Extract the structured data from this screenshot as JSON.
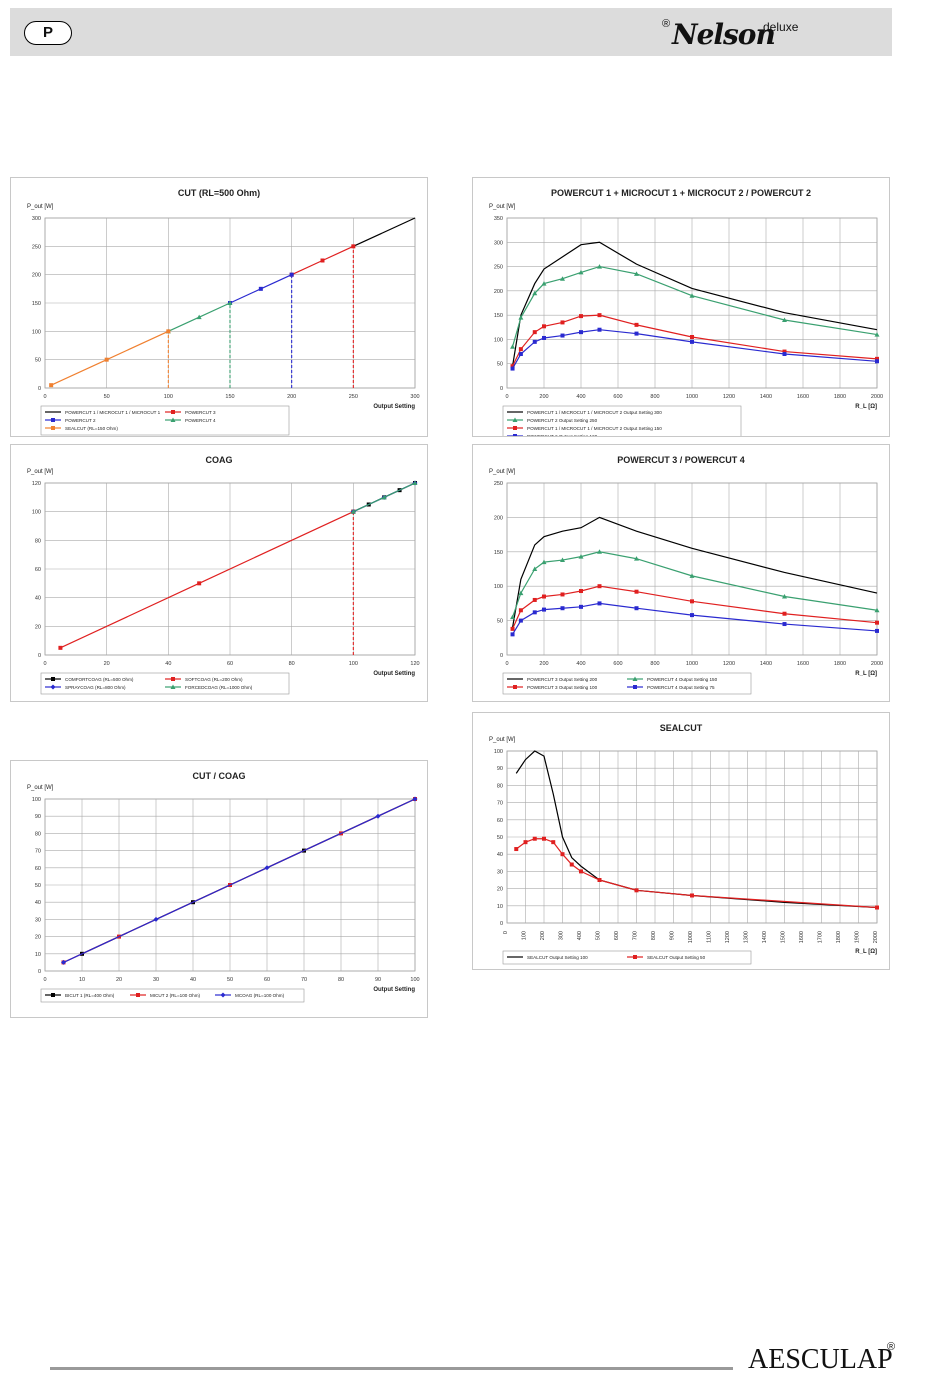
{
  "header": {
    "lang_badge": "P",
    "brand_reg": "®",
    "brand_name": "Nelson",
    "brand_suffix": "deluxe"
  },
  "footer": {
    "brand": "AESCULAP",
    "reg": "®"
  },
  "charts": [
    {
      "id": "cut",
      "title": "CUT (RL=500 Ohm)",
      "ylabel": "P_out [W]",
      "xlabel": "Output Setting",
      "chart_data": {
        "type": "line",
        "xlim": [
          0,
          300
        ],
        "ylim": [
          0,
          300
        ],
        "xticks": [
          0,
          50,
          100,
          150,
          200,
          250,
          300
        ],
        "yticks": [
          0,
          50,
          100,
          150,
          200,
          250,
          300
        ],
        "series": [
          {
            "name": "POWERCUT 1 / MICROCUT 1 / MICROCUT 1",
            "color": "#000000",
            "marker": "none",
            "x": [
              250,
              300
            ],
            "y": [
              250,
              300
            ]
          },
          {
            "name": "POWERCUT 3",
            "color": "#e02020",
            "marker": "square",
            "x": [
              200,
              225,
              250
            ],
            "y": [
              200,
              225,
              250
            ]
          },
          {
            "name": "POWERCUT 2",
            "color": "#2a2ad0",
            "marker": "square",
            "x": [
              150,
              175,
              200
            ],
            "y": [
              150,
              175,
              200
            ]
          },
          {
            "name": "POWERCUT 4",
            "color": "#3aa070",
            "marker": "triangle",
            "x": [
              100,
              125,
              150
            ],
            "y": [
              100,
              125,
              150
            ]
          },
          {
            "name": "SEALCUT (RL=150 Ohm)",
            "color": "#f08030",
            "marker": "square",
            "x": [
              5,
              50,
              100
            ],
            "y": [
              5,
              50,
              100
            ]
          }
        ],
        "vlines": [
          {
            "x": 100,
            "color": "#f08030"
          },
          {
            "x": 150,
            "color": "#3aa070"
          },
          {
            "x": 200,
            "color": "#2a2ad0"
          },
          {
            "x": 250,
            "color": "#e02020"
          }
        ]
      }
    },
    {
      "id": "powercut12",
      "title": "POWERCUT 1 + MICROCUT 1 + MICROCUT 2 / POWERCUT 2",
      "ylabel": "P_out [W]",
      "xlabel": "R_L [Ω]",
      "chart_data": {
        "type": "line",
        "xlim": [
          0,
          2000
        ],
        "ylim": [
          0,
          350
        ],
        "xticks": [
          0,
          200,
          400,
          600,
          800,
          1000,
          1200,
          1400,
          1600,
          1800,
          2000
        ],
        "yticks": [
          0,
          50,
          100,
          150,
          200,
          250,
          300,
          350
        ],
        "series": [
          {
            "name": "POWERCUT 1 / MICROCUT 1 / MICROCUT 2 Output Setting 300",
            "color": "#000000",
            "marker": "none",
            "x": [
              30,
              75,
              150,
              200,
              300,
              400,
              500,
              700,
              1000,
              1500,
              2000
            ],
            "y": [
              45,
              150,
              215,
              245,
              270,
              295,
              300,
              255,
              205,
              155,
              120
            ]
          },
          {
            "name": "POWERCUT 2 Output Setting 250",
            "color": "#3aa070",
            "marker": "triangle",
            "x": [
              30,
              75,
              150,
              200,
              300,
              400,
              500,
              700,
              1000,
              1500,
              2000
            ],
            "y": [
              85,
              145,
              195,
              215,
              225,
              238,
              250,
              235,
              190,
              140,
              110
            ]
          },
          {
            "name": "POWERCUT 1 / MICROCUT 1 / MICROCUT 2 Output Setting 150",
            "color": "#e02020",
            "marker": "square",
            "x": [
              30,
              75,
              150,
              200,
              300,
              400,
              500,
              700,
              1000,
              1500,
              2000
            ],
            "y": [
              45,
              80,
              115,
              127,
              135,
              148,
              150,
              130,
              105,
              75,
              60
            ]
          },
          {
            "name": "POWERCUT 2 Output Setting 120",
            "color": "#2a2ad0",
            "marker": "square",
            "x": [
              30,
              75,
              150,
              200,
              300,
              400,
              500,
              700,
              1000,
              1500,
              2000
            ],
            "y": [
              40,
              70,
              95,
              103,
              108,
              115,
              120,
              112,
              95,
              70,
              55
            ]
          }
        ]
      }
    },
    {
      "id": "coag",
      "title": "COAG",
      "ylabel": "P_out [W]",
      "xlabel": "Output Setting",
      "chart_data": {
        "type": "line",
        "xlim": [
          0,
          120
        ],
        "ylim": [
          0,
          120
        ],
        "xticks": [
          0,
          20,
          40,
          60,
          80,
          100,
          120
        ],
        "yticks": [
          0,
          20,
          40,
          60,
          80,
          100,
          120
        ],
        "series": [
          {
            "name": "COMFORTCOAG (RL=500 Ohm)",
            "color": "#000000",
            "marker": "square",
            "x": [
              100,
              105,
              110,
              115,
              120
            ],
            "y": [
              100,
              105,
              110,
              115,
              120
            ]
          },
          {
            "name": "SOFTCOAG (RL=200 Ohm)",
            "color": "#e02020",
            "marker": "square",
            "x": [
              5,
              50,
              100
            ],
            "y": [
              5,
              50,
              100
            ]
          },
          {
            "name": "SPRAYCOAG (RL=800 Ohm)",
            "color": "#2a2ad0",
            "marker": "diamond",
            "x": [
              100,
              110,
              120
            ],
            "y": [
              100,
              110,
              120
            ]
          },
          {
            "name": "FORCEDCOAG (RL=1000 Ohm)",
            "color": "#3aa070",
            "marker": "triangle",
            "x": [
              100,
              110,
              120
            ],
            "y": [
              100,
              110,
              120
            ]
          }
        ],
        "vlines": [
          {
            "x": 100,
            "color": "#e02020"
          }
        ]
      }
    },
    {
      "id": "powercut34",
      "title": "POWERCUT 3 / POWERCUT 4",
      "ylabel": "P_out [W]",
      "xlabel": "R_L [Ω]",
      "chart_data": {
        "type": "line",
        "xlim": [
          0,
          2000
        ],
        "ylim": [
          0,
          250
        ],
        "xticks": [
          0,
          200,
          400,
          600,
          800,
          1000,
          1200,
          1400,
          1600,
          1800,
          2000
        ],
        "yticks": [
          0,
          50,
          100,
          150,
          200,
          250
        ],
        "series": [
          {
            "name": "POWERCUT 3 Output Setting 200",
            "color": "#000000",
            "marker": "none",
            "x": [
              30,
              75,
              150,
              200,
              300,
              400,
              500,
              700,
              1000,
              1500,
              2000
            ],
            "y": [
              40,
              110,
              160,
              172,
              180,
              185,
              200,
              180,
              155,
              120,
              90
            ]
          },
          {
            "name": "POWERCUT 4 Output Setting 150",
            "color": "#3aa070",
            "marker": "triangle",
            "x": [
              30,
              75,
              150,
              200,
              300,
              400,
              500,
              700,
              1000,
              1500,
              2000
            ],
            "y": [
              55,
              90,
              125,
              135,
              138,
              143,
              150,
              140,
              115,
              85,
              65
            ]
          },
          {
            "name": "POWERCUT 3 Output Setting 100",
            "color": "#e02020",
            "marker": "square",
            "x": [
              30,
              75,
              150,
              200,
              300,
              400,
              500,
              700,
              1000,
              1500,
              2000
            ],
            "y": [
              38,
              65,
              80,
              85,
              88,
              93,
              100,
              92,
              78,
              60,
              47
            ]
          },
          {
            "name": "POWERCUT 4 Output Setting 75",
            "color": "#2a2ad0",
            "marker": "square",
            "x": [
              30,
              75,
              150,
              200,
              300,
              400,
              500,
              700,
              1000,
              1500,
              2000
            ],
            "y": [
              30,
              50,
              62,
              66,
              68,
              70,
              75,
              68,
              58,
              45,
              35
            ]
          }
        ]
      }
    },
    {
      "id": "cutcoag",
      "title": "CUT / COAG",
      "ylabel": "P_out [W]",
      "xlabel": "Output Setting",
      "chart_data": {
        "type": "line",
        "xlim": [
          0,
          100
        ],
        "ylim": [
          0,
          100
        ],
        "xticks": [
          0,
          10,
          20,
          30,
          40,
          50,
          60,
          70,
          80,
          90,
          100
        ],
        "yticks": [
          0,
          10,
          20,
          30,
          40,
          50,
          60,
          70,
          80,
          90,
          100
        ],
        "series": [
          {
            "name": "BICUT 1 (RL=400 Ohm)",
            "color": "#000000",
            "marker": "square",
            "x": [
              10,
              40,
              70,
              100
            ],
            "y": [
              10,
              40,
              70,
              100
            ]
          },
          {
            "name": "MICUT 2 (RL=100 Ohm)",
            "color": "#e02020",
            "marker": "square",
            "x": [
              5,
              20,
              50,
              80,
              100
            ],
            "y": [
              5,
              20,
              50,
              80,
              100
            ]
          },
          {
            "name": "MCOAG (RL=100 Ohm)",
            "color": "#2a2ad0",
            "marker": "diamond",
            "x": [
              5,
              30,
              60,
              90,
              100
            ],
            "y": [
              5,
              30,
              60,
              90,
              100
            ]
          }
        ]
      }
    },
    {
      "id": "sealcut",
      "title": "SEALCUT",
      "ylabel": "P_out [W]",
      "xlabel": "R_L [Ω]",
      "chart_data": {
        "type": "line",
        "xlim": [
          0,
          2000
        ],
        "ylim": [
          0,
          100
        ],
        "xticks": [
          0,
          100,
          200,
          300,
          400,
          500,
          600,
          700,
          800,
          900,
          1000,
          1100,
          1200,
          1300,
          1400,
          1500,
          1600,
          1700,
          1800,
          1900,
          2000
        ],
        "yticks": [
          0,
          10,
          20,
          30,
          40,
          50,
          60,
          70,
          80,
          90,
          100
        ],
        "series": [
          {
            "name": "SEALCUT Output Setting 100",
            "color": "#000000",
            "marker": "none",
            "x": [
              50,
              100,
              150,
              200,
              250,
              300,
              350,
              400,
              500,
              700,
              1000,
              1500,
              2000
            ],
            "y": [
              87,
              95,
              100,
              97,
              75,
              50,
              38,
              33,
              25,
              19,
              16,
              12,
              9
            ]
          },
          {
            "name": "SEALCUT Output Setting 50",
            "color": "#e02020",
            "marker": "square",
            "x": [
              50,
              100,
              150,
              200,
              250,
              300,
              350,
              400,
              500,
              700,
              1000,
              2000
            ],
            "y": [
              43,
              47,
              49,
              49,
              47,
              40,
              34,
              30,
              25,
              19,
              16,
              9
            ]
          }
        ]
      }
    }
  ]
}
